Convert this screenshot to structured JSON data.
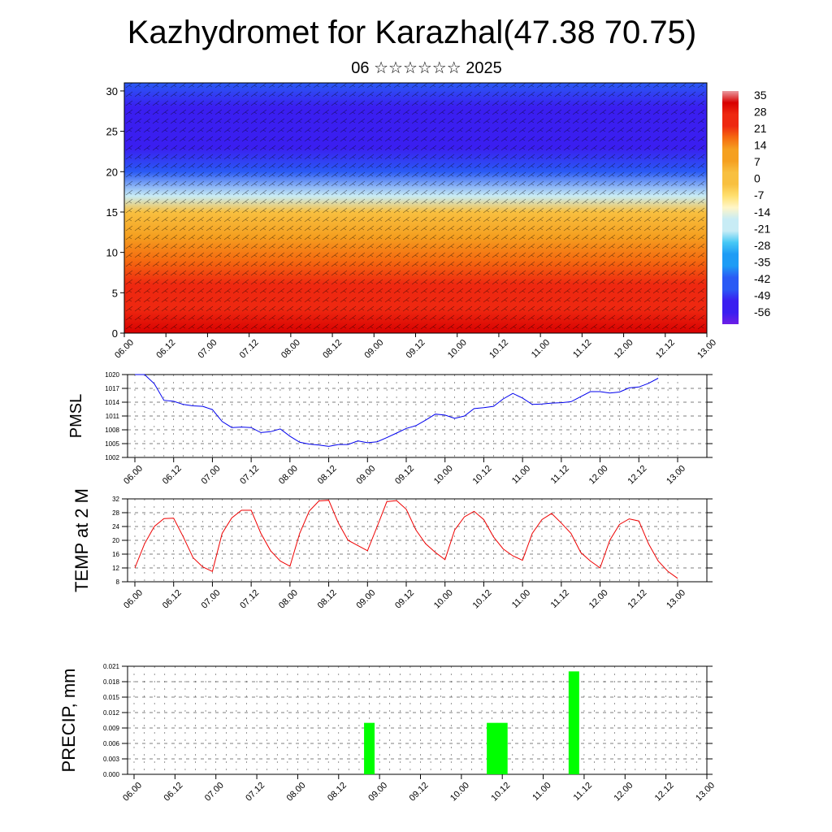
{
  "title": "Kazhydromet for Karazhal(47.38 70.75)",
  "subtitle": "06 ☆☆☆☆☆☆ 2025",
  "time_labels": [
    "06.00",
    "06.12",
    "07.00",
    "07.12",
    "08.00",
    "08.12",
    "09.00",
    "09.12",
    "10.00",
    "10.12",
    "11.00",
    "11.12",
    "12.00",
    "12.12",
    "13.00"
  ],
  "colors": {
    "pmsl_line": "#0000ee",
    "temp_line": "#ee0000",
    "precip_bar": "#00ff00"
  },
  "chart_data": [
    {
      "type": "heatmap",
      "name_hidden": "cross-section",
      "ylim": [
        0,
        31
      ],
      "y_ticks": [
        0,
        5,
        10,
        15,
        20,
        25,
        30
      ],
      "colorbar": {
        "labels": [
          "35",
          "28",
          "21",
          "14",
          "7",
          "0",
          "-7",
          "-14",
          "-21",
          "-28",
          "-35",
          "-42",
          "-49",
          "-56"
        ],
        "range": [
          -60,
          38
        ]
      },
      "overlay": "wind barbs",
      "temperature_by_height": [
        {
          "y": 0,
          "v": 30
        },
        {
          "y": 3,
          "v": 28
        },
        {
          "y": 6,
          "v": 24
        },
        {
          "y": 9,
          "v": 18
        },
        {
          "y": 12,
          "v": 10
        },
        {
          "y": 15,
          "v": 0
        },
        {
          "y": 17,
          "v": -20
        },
        {
          "y": 20,
          "v": -40
        },
        {
          "y": 23,
          "v": -55
        },
        {
          "y": 26,
          "v": -55
        },
        {
          "y": 28,
          "v": -48
        },
        {
          "y": 31,
          "v": -45
        }
      ]
    },
    {
      "type": "line",
      "ylabel": "PMSL",
      "ylim": [
        1002,
        1020
      ],
      "y_ticks": [
        1002,
        1005,
        1008,
        1011,
        1014,
        1017,
        1020
      ],
      "step_hours": 3,
      "values": [
        1020,
        1020,
        1018,
        1014.4,
        1014.2,
        1013.5,
        1013.2,
        1013.1,
        1012.4,
        1009.8,
        1008.5,
        1008.6,
        1008.5,
        1007.4,
        1007.6,
        1008.2,
        1006.6,
        1005.3,
        1004.9,
        1004.7,
        1004.4,
        1004.8,
        1004.8,
        1005.6,
        1005.2,
        1005.4,
        1006.3,
        1007.3,
        1008.3,
        1008.9,
        1010.1,
        1011.4,
        1011.2,
        1010.5,
        1011.0,
        1012.6,
        1012.8,
        1013.1,
        1014.7,
        1015.9,
        1014.9,
        1013.5,
        1013.6,
        1013.8,
        1013.9,
        1014.1,
        1015.2,
        1016.3,
        1016.3,
        1016.0,
        1016.2,
        1017.1,
        1017.3,
        1018.1,
        1019.2
      ]
    },
    {
      "type": "line",
      "ylabel": "TEMP at 2 M",
      "ylim": [
        8,
        32
      ],
      "y_ticks": [
        8,
        12,
        16,
        20,
        24,
        28,
        32
      ],
      "step_hours": 3,
      "values": [
        12,
        19,
        24,
        26.3,
        26.4,
        21,
        15,
        12.3,
        11,
        22,
        26.5,
        28.7,
        28.7,
        22,
        17,
        14,
        12.5,
        22,
        28.5,
        31.4,
        31.6,
        25,
        20,
        18.5,
        17,
        24,
        31.2,
        31.5,
        29,
        23,
        19,
        16.5,
        14.4,
        23,
        26.8,
        28.4,
        26,
        21,
        17.5,
        15.5,
        14.2,
        22,
        26,
        27.8,
        25,
        22,
        16.5,
        14,
        12,
        20,
        24.6,
        26.2,
        25.6,
        19,
        14,
        11,
        9
      ]
    },
    {
      "type": "bar",
      "ylabel": "PRECIP, mm",
      "ylim": [
        0,
        0.021
      ],
      "y_ticks": [
        "0.000",
        "0.003",
        "0.006",
        "0.009",
        "0.012",
        "0.015",
        "0.018",
        "0.021"
      ],
      "bars": [
        {
          "x": "08.21",
          "value": 0.01
        },
        {
          "x": "10.09",
          "value": 0.01
        },
        {
          "x": "10.12",
          "value": 0.01
        },
        {
          "x": "11.09",
          "value": 0.02
        }
      ]
    }
  ]
}
